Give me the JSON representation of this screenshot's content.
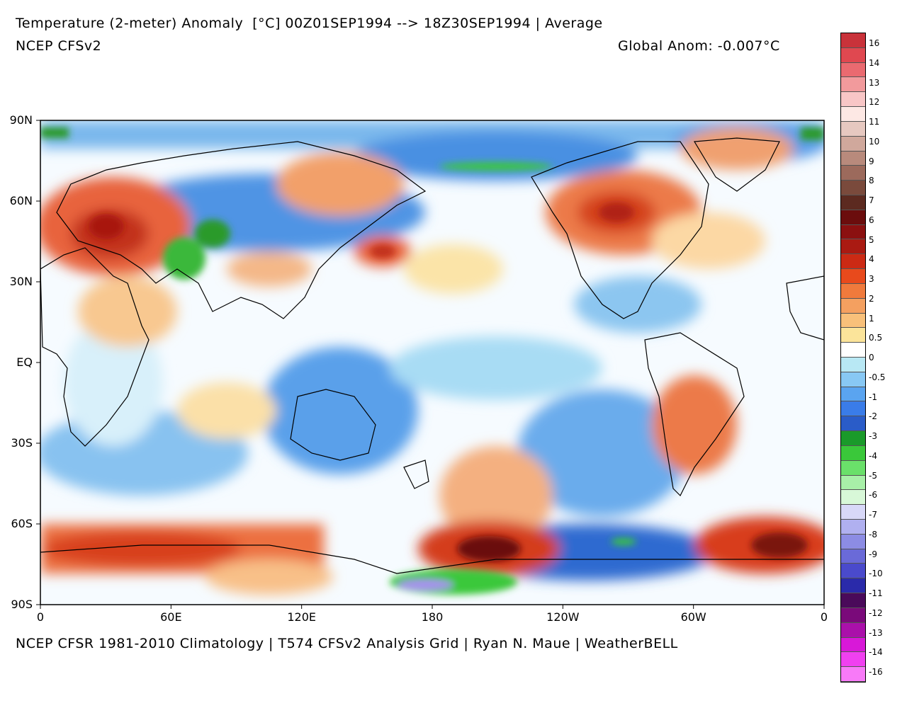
{
  "header": {
    "title": "Temperature (2-meter) Anomaly  [°C] 00Z01SEP1994 --> 18Z30SEP1994 | Average",
    "subtitle": "NCEP CFSv2",
    "global_anom": "Global Anom: -0.007°C"
  },
  "footer": "NCEP CFSR 1981-2010 Climatology | T574 CFSv2 Analysis Grid | Ryan N. Maue | WeatherBELL",
  "lat_labels": [
    "90N",
    "60N",
    "30N",
    "EQ",
    "30S",
    "60S",
    "90S"
  ],
  "lon_labels": [
    "0",
    "60E",
    "120E",
    "180",
    "120W",
    "60W",
    "0"
  ],
  "colorbar": {
    "labels": [
      "16",
      "14",
      "13",
      "12",
      "11",
      "10",
      "9",
      "8",
      "7",
      "6",
      "5",
      "4",
      "3",
      "2",
      "1",
      "0.5",
      "0",
      "-0.5",
      "-1",
      "-2",
      "-3",
      "-4",
      "-5",
      "-6",
      "-7",
      "-8",
      "-9",
      "-10",
      "-11",
      "-12",
      "-13",
      "-14",
      "-16"
    ],
    "colors": [
      "#c9323a",
      "#e04850",
      "#ea6a70",
      "#f29a9c",
      "#f8c6c6",
      "#fde8e4",
      "#e6c8c0",
      "#d0a89c",
      "#b88a7c",
      "#9c6a5c",
      "#7a4a3c",
      "#5c2a20",
      "#6b0d0d",
      "#8b1010",
      "#aa1a12",
      "#cc2a14",
      "#e84a1c",
      "#f07a3c",
      "#f4a060",
      "#f8c07a",
      "#fbe49a",
      "#ffffff",
      "#b8e8f4",
      "#88c8f4",
      "#5aa4f0",
      "#3a7ce8",
      "#2a5cc8",
      "#1a9a2a",
      "#3ac83a",
      "#6ae06a",
      "#a8f0a8",
      "#d8f8d8",
      "#d8d8f8",
      "#b0b0f0",
      "#8c8ce4",
      "#6a6ad8",
      "#4a4acc",
      "#2a2aaa",
      "#4a0a5a",
      "#7a0a7a",
      "#aa10aa",
      "#d818d8",
      "#f040f0",
      "#f87af8"
    ]
  }
}
